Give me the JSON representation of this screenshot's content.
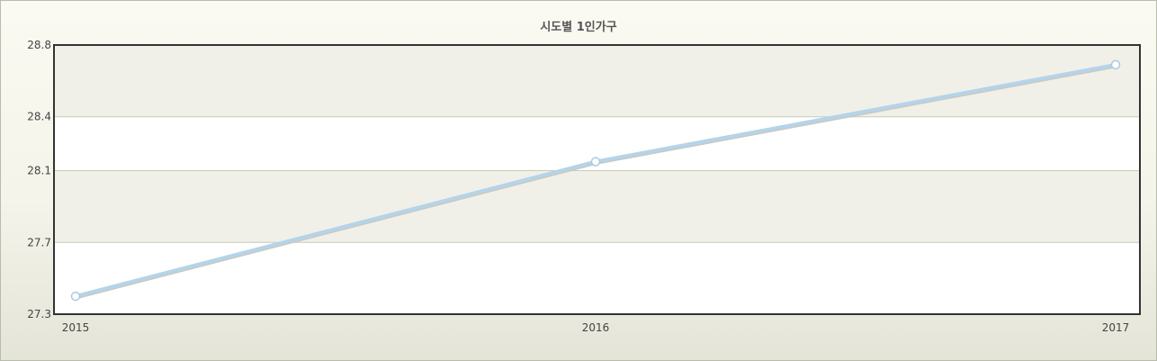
{
  "chart_data": {
    "type": "line",
    "title": "시도별 1인가구",
    "xlabel": "",
    "ylabel": "",
    "categories": [
      "2015",
      "2016",
      "2017"
    ],
    "series": [
      {
        "values": [
          27.4,
          28.15,
          28.69
        ]
      }
    ],
    "ylim": [
      27.3,
      28.8
    ],
    "yticks": [
      "27.3",
      "27.7",
      "28.1",
      "28.4",
      "28.8"
    ],
    "grid": true,
    "legend": "none",
    "colors": {
      "line": "#b4d4ea",
      "line_shadow": "#c9c9c0",
      "band": "#f0f0e8",
      "grid": "#c8cab8",
      "axis": "#333333"
    }
  }
}
